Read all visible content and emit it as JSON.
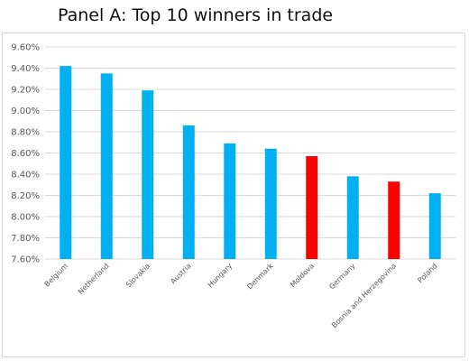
{
  "chart_data": {
    "type": "bar",
    "title": "Panel A: Top 10 winners in trade",
    "xlabel": "",
    "ylabel": "",
    "categories": [
      "Belgium",
      "Netherland",
      "Slovakia",
      "Austria",
      "Hungary",
      "Denmark",
      "Moldova",
      "Germany",
      "Bosnia and Herzegovina",
      "Poland"
    ],
    "values": [
      9.42,
      9.35,
      9.19,
      8.86,
      8.69,
      8.64,
      8.57,
      8.38,
      8.33,
      8.22
    ],
    "bar_colors": [
      "#00b0f0",
      "#00b0f0",
      "#00b0f0",
      "#00b0f0",
      "#00b0f0",
      "#00b0f0",
      "#ff0000",
      "#00b0f0",
      "#ff0000",
      "#00b0f0"
    ],
    "ylim": [
      7.6,
      9.6
    ],
    "yticks": [
      "7.60%",
      "7.80%",
      "8.00%",
      "8.20%",
      "8.40%",
      "8.60%",
      "8.80%",
      "9.00%",
      "9.20%",
      "9.40%",
      "9.60%"
    ],
    "ytick_values": [
      7.6,
      7.8,
      8.0,
      8.2,
      8.4,
      8.6,
      8.8,
      9.0,
      9.2,
      9.4,
      9.6
    ],
    "grid": true,
    "legend": "none",
    "colors": {
      "primary": "#00b0f0",
      "highlight": "#ff0000",
      "grid": "#d9d9d9",
      "axis_text": "#595959"
    }
  }
}
